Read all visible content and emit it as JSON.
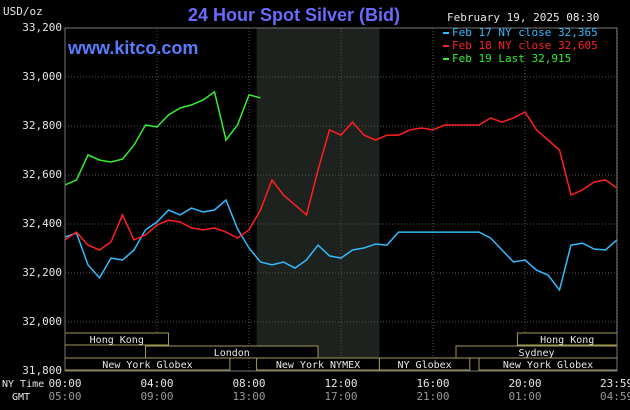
{
  "chart_data": {
    "type": "line",
    "title": "24 Hour Spot Silver (Bid)",
    "source": "www.kitco.com",
    "timestamp": "February 19, 2025 08:30",
    "y_label": "USD/oz",
    "x_label": "NY Time",
    "x2_label": "GMT",
    "x": [
      0,
      0.5,
      1,
      1.5,
      2,
      2.5,
      3,
      3.5,
      4,
      4.5,
      5,
      5.5,
      6,
      6.5,
      7,
      7.5,
      8,
      8.5,
      9,
      9.5,
      10,
      10.5,
      11,
      11.5,
      12,
      12.5,
      13,
      13.5,
      14,
      14.5,
      15,
      15.5,
      16,
      16.5,
      17,
      17.5,
      18,
      18.5,
      19,
      19.5,
      20,
      20.5,
      21,
      21.5,
      22,
      22.5,
      23,
      23.5,
      24
    ],
    "series": [
      {
        "name": "Feb 17 NY close 32,365",
        "color": "#33bbff",
        "values": [
          32347,
          32363,
          32233,
          32180,
          32261,
          32253,
          32294,
          32376,
          32408,
          32457,
          32437,
          32465,
          32449,
          32457,
          32498,
          32380,
          32302,
          32245,
          32233,
          32245,
          32220,
          32253,
          32314,
          32270,
          32261,
          32294,
          32302,
          32318,
          32314,
          32367,
          32367,
          32367,
          32367,
          32367,
          32367,
          32367,
          32367,
          32343,
          32294,
          32245,
          32253,
          32212,
          32192,
          32131,
          32314,
          32322,
          32298,
          32294,
          32335
        ]
      },
      {
        "name": "Feb 18 NY close 32,605",
        "color": "#ff2020",
        "values": [
          32335,
          32367,
          32314,
          32294,
          32327,
          32437,
          32335,
          32355,
          32396,
          32416,
          32408,
          32384,
          32376,
          32384,
          32367,
          32343,
          32376,
          32457,
          32580,
          32518,
          32478,
          32437,
          32620,
          32784,
          32763,
          32816,
          32763,
          32743,
          32763,
          32763,
          32784,
          32792,
          32784,
          32804,
          32804,
          32804,
          32804,
          32833,
          32816,
          32833,
          32857,
          32784,
          32743,
          32702,
          32518,
          32539,
          32571,
          32580,
          32547
        ]
      },
      {
        "name": "Feb 19 Last 32,915",
        "color": "#33ee33",
        "values": [
          32559,
          32580,
          32682,
          32661,
          32653,
          32665,
          32722,
          32804,
          32796,
          32845,
          32873,
          32886,
          32906,
          32939,
          32743,
          32804,
          32927,
          32915,
          null,
          null,
          null,
          null,
          null,
          null,
          null,
          null,
          null,
          null,
          null,
          null,
          null,
          null,
          null,
          null,
          null,
          null,
          null,
          null,
          null,
          null,
          null,
          null,
          null,
          null,
          null,
          null,
          null,
          null,
          null
        ]
      }
    ],
    "xlim": [
      0,
      24
    ],
    "xticks": [
      {
        "value": 0,
        "label": "00:00"
      },
      {
        "value": 4,
        "label": "04:00"
      },
      {
        "value": 8,
        "label": "08:00"
      },
      {
        "value": 12,
        "label": "12:00"
      },
      {
        "value": 16,
        "label": "16:00"
      },
      {
        "value": 20,
        "label": "20:00"
      },
      {
        "value": 23.983,
        "label": "23:59"
      }
    ],
    "x2ticks": [
      "05:00",
      "09:00",
      "13:00",
      "17:00",
      "21:00",
      "01:00",
      "04:59"
    ],
    "ylim": [
      31800,
      33200
    ],
    "yticks": [
      {
        "value": 31800,
        "label": "31,800"
      },
      {
        "value": 32000,
        "label": "32,000"
      },
      {
        "value": 32200,
        "label": "32,200"
      },
      {
        "value": 32400,
        "label": "32,400"
      },
      {
        "value": 32600,
        "label": "32,600"
      },
      {
        "value": 32800,
        "label": "32,800"
      },
      {
        "value": 33000,
        "label": "33,000"
      },
      {
        "value": 33200,
        "label": "33,200"
      }
    ],
    "grid": true,
    "session_rows": [
      [
        {
          "name": "Hong Kong",
          "start": 0,
          "end": 4.5
        },
        {
          "name": "Hong Kong",
          "start": 19.67,
          "end": 24
        }
      ],
      [
        {
          "name": "London",
          "start": 3.5,
          "end": 11
        },
        {
          "name": "Sydney",
          "start": 17,
          "end": 24
        }
      ],
      [
        {
          "name": "New York Globex",
          "start": 0,
          "end": 7.17
        },
        {
          "name": "New York NYMEX",
          "start": 8.33,
          "end": 13.67,
          "highlight": true
        },
        {
          "name": "NY Globex",
          "start": 13.67,
          "end": 17.6
        },
        {
          "name": "New York Globex",
          "start": 18,
          "end": 24
        }
      ]
    ]
  }
}
